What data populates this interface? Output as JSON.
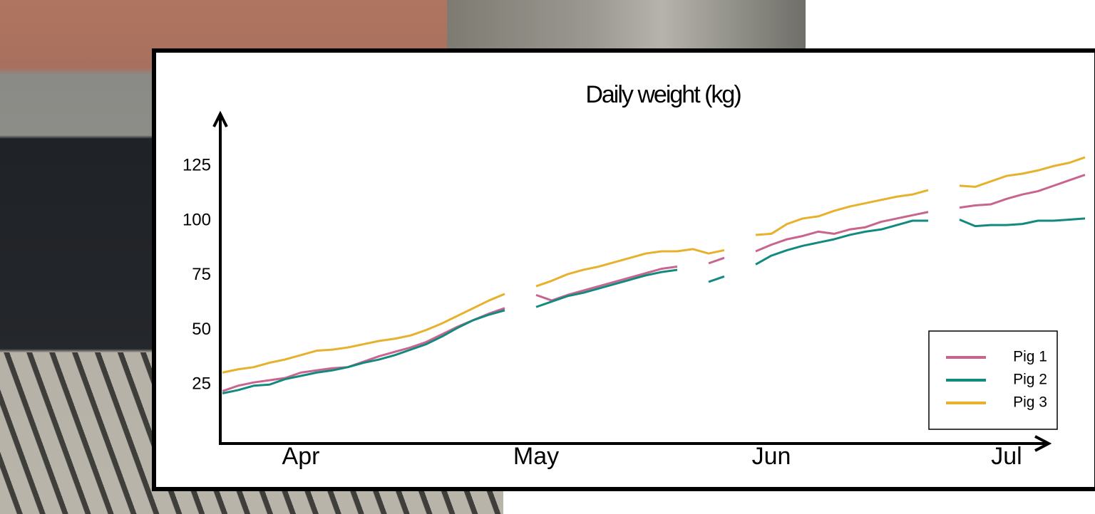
{
  "chart_data": {
    "type": "line",
    "title": "Daily weight (kg)",
    "categories": [
      null,
      null,
      null,
      null,
      null,
      "Apr",
      null,
      null,
      null,
      null,
      null,
      null,
      null,
      null,
      null,
      null,
      null,
      null,
      null,
      null,
      "May",
      null,
      null,
      null,
      null,
      null,
      null,
      null,
      null,
      null,
      null,
      null,
      null,
      null,
      null,
      "Jun",
      null,
      null,
      null,
      null,
      null,
      null,
      null,
      null,
      null,
      null,
      null,
      null,
      null,
      null,
      "Jul",
      null,
      null,
      null,
      null,
      null
    ],
    "series": [
      {
        "name": "Pig 1",
        "color": "#c8658f",
        "values": [
          22,
          24.5,
          26,
          27,
          28,
          30.5,
          31.5,
          32.5,
          33,
          35.5,
          38,
          40,
          42,
          44.5,
          48,
          51.5,
          54.5,
          57.5,
          60,
          null,
          66,
          63.5,
          66,
          68,
          70,
          72,
          74,
          76,
          78,
          79,
          null,
          80.5,
          83,
          null,
          86,
          89,
          91.5,
          93,
          95,
          94,
          96,
          97,
          99.5,
          101,
          102.5,
          104,
          null,
          106,
          107,
          107.5,
          110,
          112,
          113.5,
          116,
          118.5,
          121
        ]
      },
      {
        "name": "Pig 2",
        "color": "#138a80",
        "values": [
          21,
          22.5,
          24.5,
          25,
          27.5,
          29,
          30.5,
          31.5,
          33,
          35,
          36.5,
          38.5,
          41,
          43.5,
          47,
          51,
          54.5,
          57,
          59,
          null,
          60.5,
          63,
          65.5,
          67,
          69,
          71,
          73,
          75,
          76.5,
          77.5,
          null,
          72,
          74.5,
          null,
          80,
          84,
          86.5,
          88.5,
          90,
          91.5,
          93.5,
          95,
          96,
          98,
          100,
          100,
          null,
          100.5,
          97.5,
          98,
          98,
          98.5,
          100,
          100,
          100.5,
          101
        ]
      },
      {
        "name": "Pig 3",
        "color": "#e8b12c",
        "values": [
          30.5,
          32,
          33,
          35,
          36.5,
          38.5,
          40.5,
          41,
          42,
          43.5,
          45,
          46,
          47.5,
          50,
          53,
          56.5,
          60,
          63.5,
          66.5,
          null,
          70,
          72.5,
          75.5,
          77.5,
          79,
          81,
          83,
          85,
          86,
          86,
          87,
          85,
          86.5,
          null,
          93.5,
          94,
          98.5,
          101,
          102,
          104.5,
          106.5,
          108,
          109.5,
          111,
          112,
          114,
          null,
          116,
          115.5,
          118,
          120.5,
          121.5,
          123,
          125,
          126.5,
          129
        ]
      }
    ],
    "ylim": [
      0,
      150
    ],
    "yticks": [
      25,
      50,
      75,
      100,
      125
    ],
    "grid": false,
    "legend": "lower right"
  }
}
